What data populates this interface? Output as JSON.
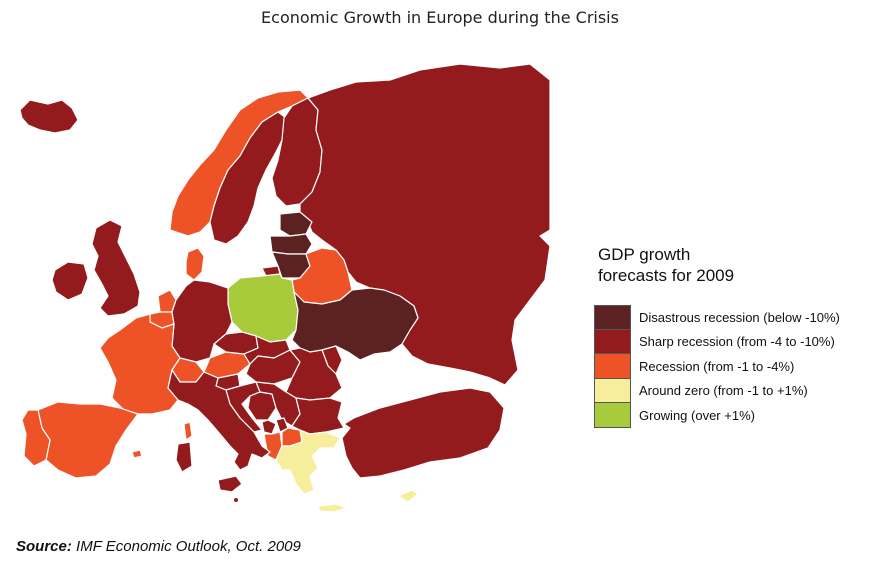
{
  "title": "Economic Growth in Europe during the Crisis",
  "legend": {
    "title_line1": "GDP growth",
    "title_line2": "forecasts for 2009",
    "items": [
      {
        "label": "Disastrous recession (below -10%)",
        "color": "#5c2222"
      },
      {
        "label": "Sharp recession (from -4 to -10%)",
        "color": "#931b1e"
      },
      {
        "label": "Recession (from -1 to -4%)",
        "color": "#ed5327"
      },
      {
        "label": "Around zero (from -1 to +1%)",
        "color": "#f7ee9c"
      },
      {
        "label": "Growing (over +1%)",
        "color": "#a7cb3b"
      }
    ]
  },
  "regions": [
    {
      "name": "Iceland",
      "category": "Sharp recession"
    },
    {
      "name": "Norway",
      "category": "Recession"
    },
    {
      "name": "Sweden",
      "category": "Sharp recession"
    },
    {
      "name": "Finland",
      "category": "Sharp recession"
    },
    {
      "name": "Russia",
      "category": "Sharp recession"
    },
    {
      "name": "Estonia",
      "category": "Disastrous recession"
    },
    {
      "name": "Latvia",
      "category": "Disastrous recession"
    },
    {
      "name": "Lithuania",
      "category": "Disastrous recession"
    },
    {
      "name": "Belarus",
      "category": "Recession"
    },
    {
      "name": "Poland",
      "category": "Growing"
    },
    {
      "name": "Ukraine",
      "category": "Disastrous recession"
    },
    {
      "name": "Ireland",
      "category": "Sharp recession"
    },
    {
      "name": "United Kingdom",
      "category": "Sharp recession"
    },
    {
      "name": "Denmark",
      "category": "Recession"
    },
    {
      "name": "Netherlands",
      "category": "Recession"
    },
    {
      "name": "Belgium",
      "category": "Recession"
    },
    {
      "name": "Germany",
      "category": "Sharp recession"
    },
    {
      "name": "France",
      "category": "Recession"
    },
    {
      "name": "Spain",
      "category": "Recession"
    },
    {
      "name": "Portugal",
      "category": "Recession"
    },
    {
      "name": "Switzerland",
      "category": "Recession"
    },
    {
      "name": "Austria",
      "category": "Recession"
    },
    {
      "name": "Czech Republic",
      "category": "Sharp recession"
    },
    {
      "name": "Slovakia",
      "category": "Sharp recession"
    },
    {
      "name": "Hungary",
      "category": "Sharp recession"
    },
    {
      "name": "Slovenia",
      "category": "Sharp recession"
    },
    {
      "name": "Croatia",
      "category": "Sharp recession"
    },
    {
      "name": "Bosnia and Herzegovina",
      "category": "Sharp recession"
    },
    {
      "name": "Serbia",
      "category": "Sharp recession"
    },
    {
      "name": "Montenegro",
      "category": "Sharp recession"
    },
    {
      "name": "Kosovo",
      "category": "Sharp recession"
    },
    {
      "name": "Albania",
      "category": "Recession"
    },
    {
      "name": "Macedonia",
      "category": "Recession"
    },
    {
      "name": "Romania",
      "category": "Sharp recession"
    },
    {
      "name": "Moldova",
      "category": "Sharp recession"
    },
    {
      "name": "Bulgaria",
      "category": "Sharp recession"
    },
    {
      "name": "Greece",
      "category": "Around zero"
    },
    {
      "name": "Turkey",
      "category": "Sharp recession"
    },
    {
      "name": "Italy",
      "category": "Sharp recession"
    },
    {
      "name": "Sardinia",
      "category": "Sharp recession"
    },
    {
      "name": "Corsica",
      "category": "Recession"
    },
    {
      "name": "Sicily",
      "category": "Sharp recession"
    },
    {
      "name": "Cyprus",
      "category": "Around zero"
    },
    {
      "name": "Malta",
      "category": "Sharp recession"
    }
  ],
  "source": {
    "label": "Source:",
    "text": " IMF Economic Outlook, Oct. 2009"
  }
}
